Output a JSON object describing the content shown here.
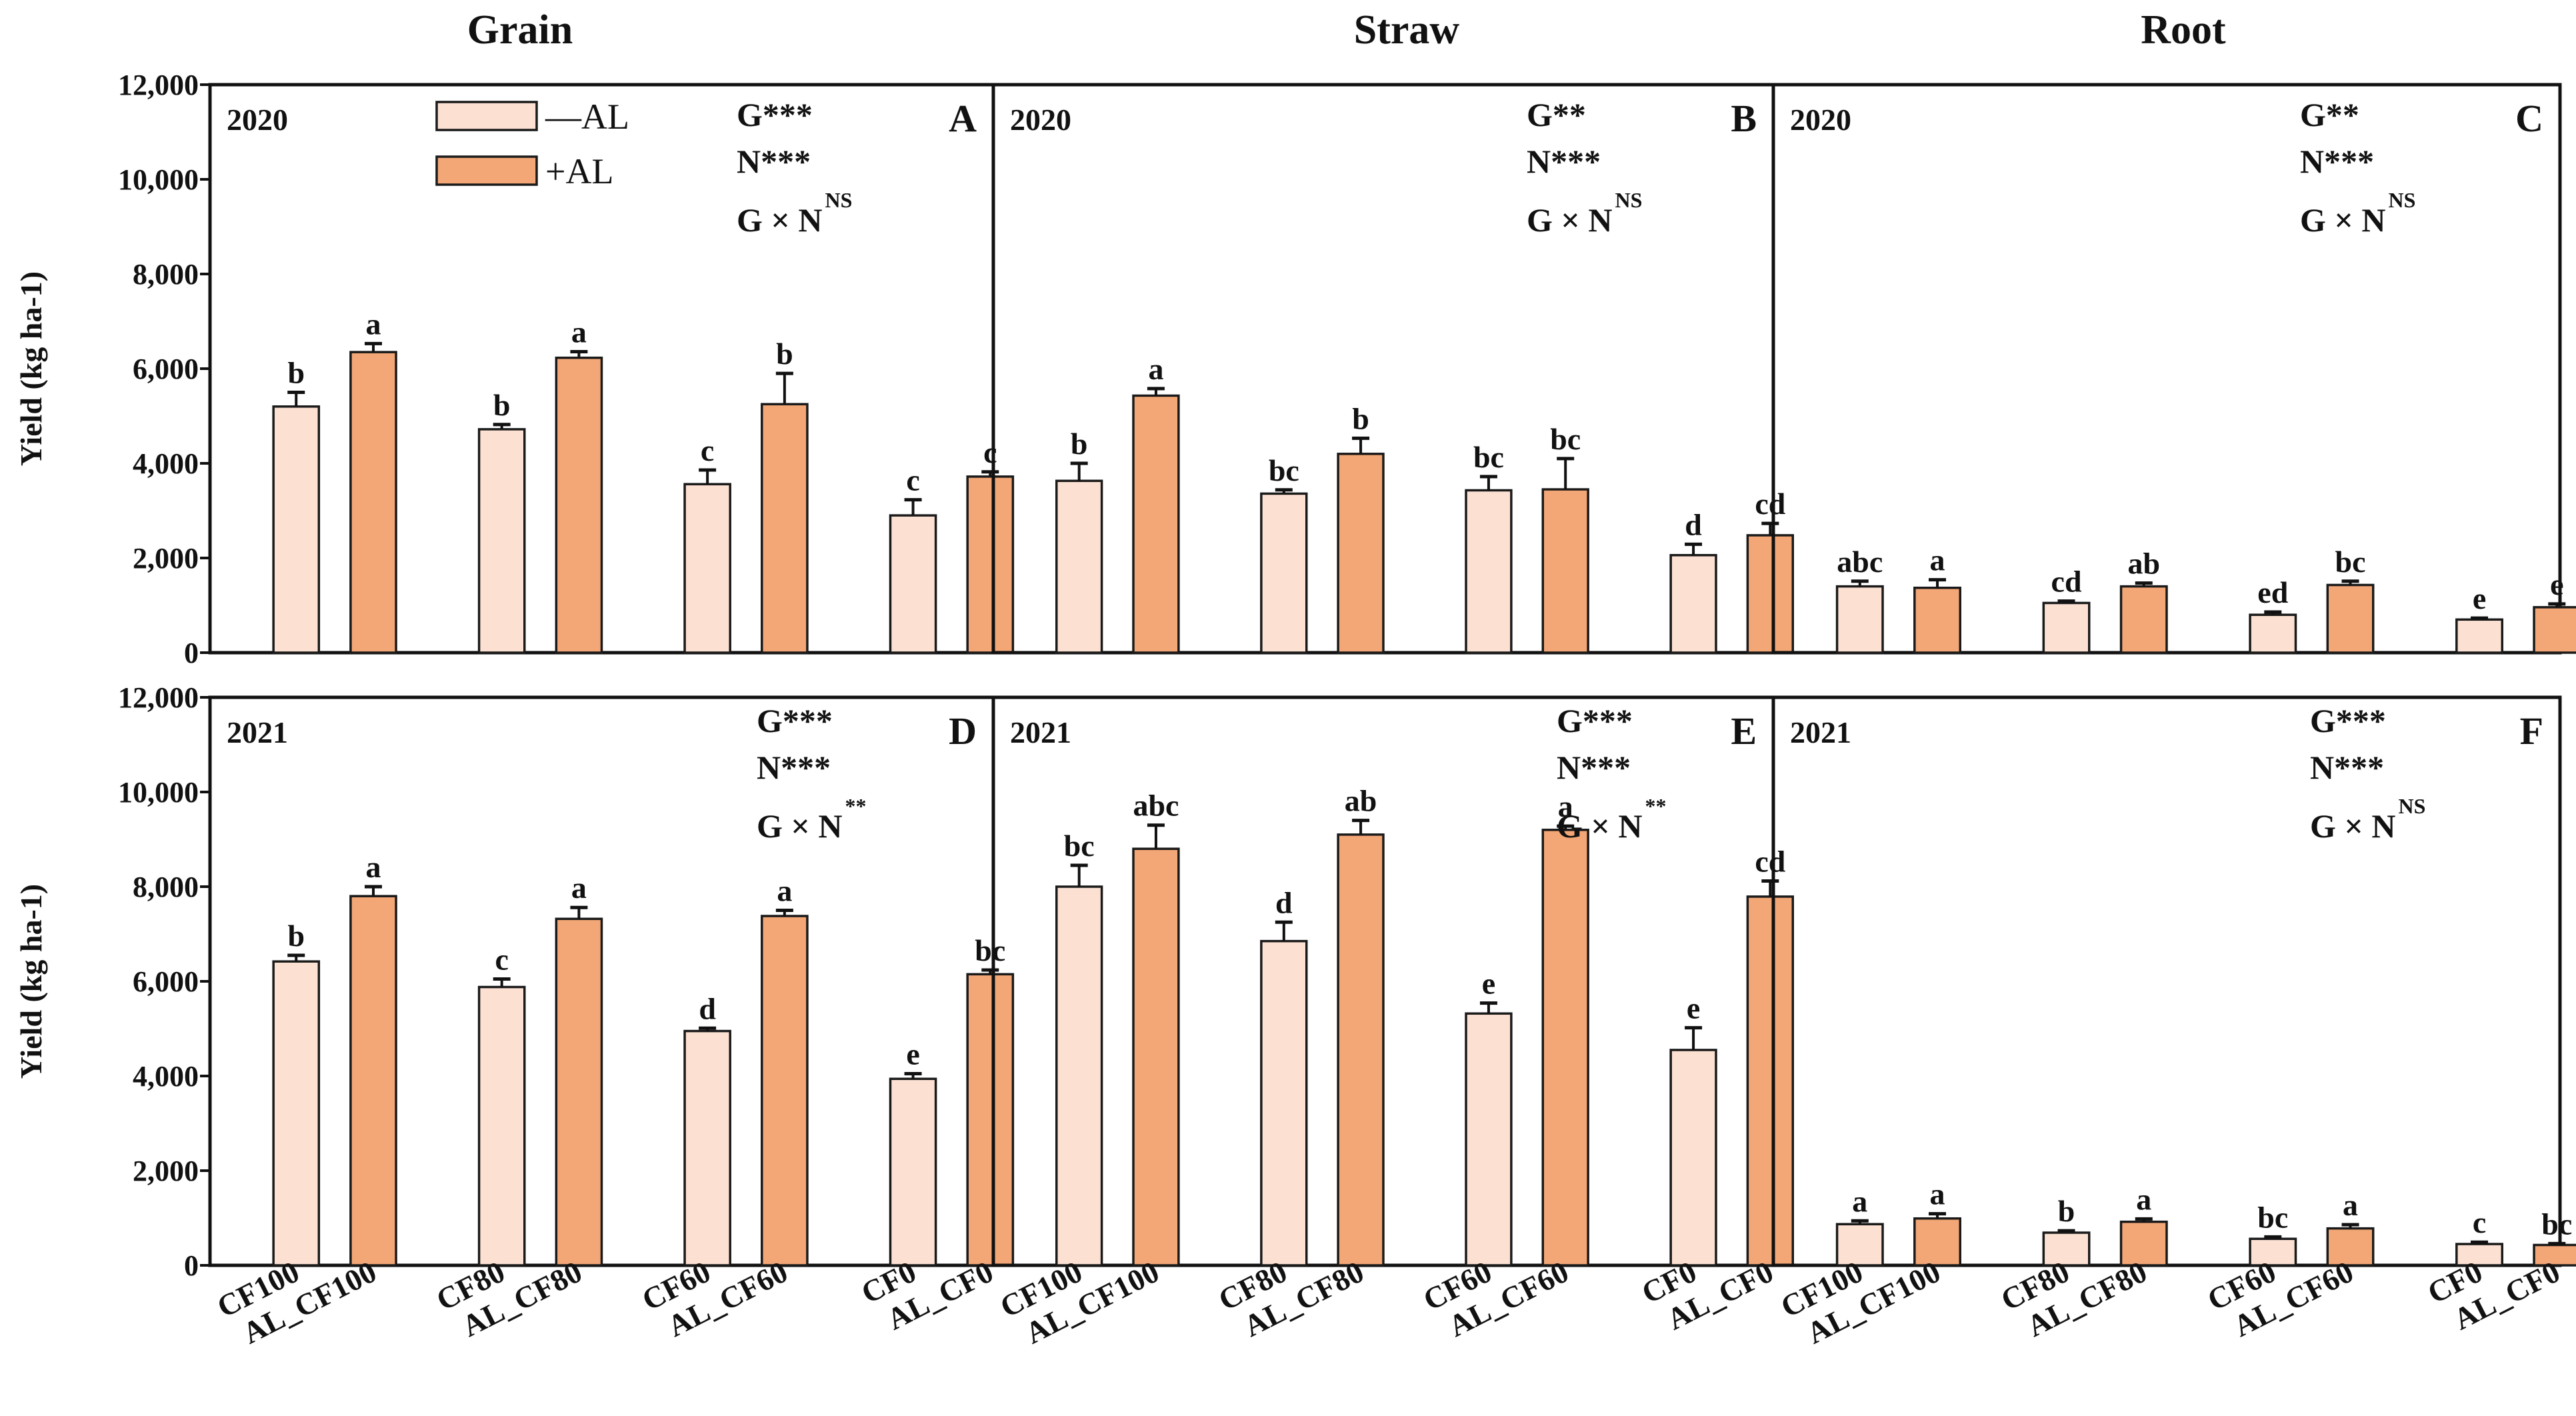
{
  "colors": {
    "minus_AL": "#FCE1D3",
    "plus_AL": "#F4A776",
    "axis": "#111111"
  },
  "legend": {
    "minus": "—AL",
    "plus": "+AL"
  },
  "ylabel": "Yield (kg ha-1)",
  "chart_data": {
    "type": "bar",
    "ylim": [
      0,
      12000
    ],
    "yticks": [
      "0",
      "2,000",
      "4,000",
      "6,000",
      "8,000",
      "10,000",
      "12,000"
    ],
    "columns": [
      "Grain",
      "Straw",
      "Root"
    ],
    "x_groups": [
      {
        "minus": "CF100",
        "plus": "AL_CF100"
      },
      {
        "minus": "CF80",
        "plus": "AL_CF80"
      },
      {
        "minus": "CF60",
        "plus": "AL_CF60"
      },
      {
        "minus": "CF0",
        "plus": "AL_CF0"
      }
    ],
    "series_names": [
      "—AL",
      "+AL"
    ],
    "panels": [
      {
        "id": "A",
        "year": "2020",
        "column": "Grain",
        "minus": [
          5200,
          4720,
          3560,
          2900
        ],
        "minus_err": [
          300,
          100,
          300,
          330
        ],
        "plus": [
          6350,
          6230,
          5250,
          3720
        ],
        "plus_err": [
          180,
          130,
          650,
          100
        ],
        "minus_letters": [
          "b",
          "b",
          "c",
          "c"
        ],
        "plus_letters": [
          "a",
          "a",
          "b",
          "c"
        ],
        "stats": {
          "g": "G***",
          "n": "N***",
          "gxn_base": "G × N",
          "gxn_sup": "NS"
        }
      },
      {
        "id": "B",
        "year": "2020",
        "column": "Straw",
        "minus": [
          3630,
          3360,
          3430,
          2060
        ],
        "minus_err": [
          370,
          80,
          290,
          230
        ],
        "plus": [
          5430,
          4200,
          3450,
          2480
        ],
        "plus_err": [
          150,
          330,
          650,
          250
        ],
        "minus_letters": [
          "b",
          "bc",
          "bc",
          "d"
        ],
        "plus_letters": [
          "a",
          "b",
          "bc",
          "cd"
        ],
        "stats": {
          "g": "G**",
          "n": "N***",
          "gxn_base": "G × N",
          "gxn_sup": "NS"
        }
      },
      {
        "id": "C",
        "year": "2020",
        "column": "Root",
        "minus": [
          1400,
          1050,
          800,
          700
        ],
        "minus_err": [
          110,
          40,
          60,
          30
        ],
        "plus": [
          1370,
          1400,
          1430,
          960
        ],
        "plus_err": [
          170,
          70,
          80,
          70
        ],
        "minus_letters": [
          "abc",
          "cd",
          "ed",
          "e"
        ],
        "plus_letters": [
          "a",
          "ab",
          "bc",
          "e"
        ],
        "stats": {
          "g": "G**",
          "n": "N***",
          "gxn_base": "G × N",
          "gxn_sup": "NS"
        }
      },
      {
        "id": "D",
        "year": "2021",
        "column": "Grain",
        "minus": [
          6420,
          5880,
          4950,
          3940
        ],
        "minus_err": [
          130,
          170,
          60,
          110
        ],
        "plus": [
          7800,
          7320,
          7380,
          6150
        ],
        "plus_err": [
          200,
          240,
          120,
          90
        ],
        "minus_letters": [
          "b",
          "c",
          "d",
          "e"
        ],
        "plus_letters": [
          "a",
          "a",
          "a",
          "bc"
        ],
        "stats": {
          "g": "G***",
          "n": "N***",
          "gxn_base": "G × N",
          "gxn_sup": "**"
        }
      },
      {
        "id": "E",
        "year": "2021",
        "column": "Straw",
        "minus": [
          8000,
          6850,
          5320,
          4550
        ],
        "minus_err": [
          450,
          400,
          220,
          470
        ],
        "plus": [
          8800,
          9100,
          9200,
          7790
        ],
        "plus_err": [
          500,
          300,
          80,
          330
        ],
        "minus_letters": [
          "bc",
          "d",
          "e",
          "e"
        ],
        "plus_letters": [
          "abc",
          "ab",
          "a",
          "cd"
        ],
        "stats": {
          "g": "G***",
          "n": "N***",
          "gxn_base": "G × N",
          "gxn_sup": "**"
        }
      },
      {
        "id": "F",
        "year": "2021",
        "column": "Root",
        "minus": [
          870,
          690,
          560,
          450
        ],
        "minus_err": [
          70,
          40,
          40,
          40
        ],
        "plus": [
          990,
          920,
          780,
          430
        ],
        "plus_err": [
          100,
          60,
          80,
          30
        ],
        "minus_letters": [
          "a",
          "b",
          "bc",
          "c"
        ],
        "plus_letters": [
          "a",
          "a",
          "a",
          "bc"
        ],
        "stats": {
          "g": "G***",
          "n": "N***",
          "gxn_base": "G × N",
          "gxn_sup": "NS"
        }
      }
    ]
  }
}
